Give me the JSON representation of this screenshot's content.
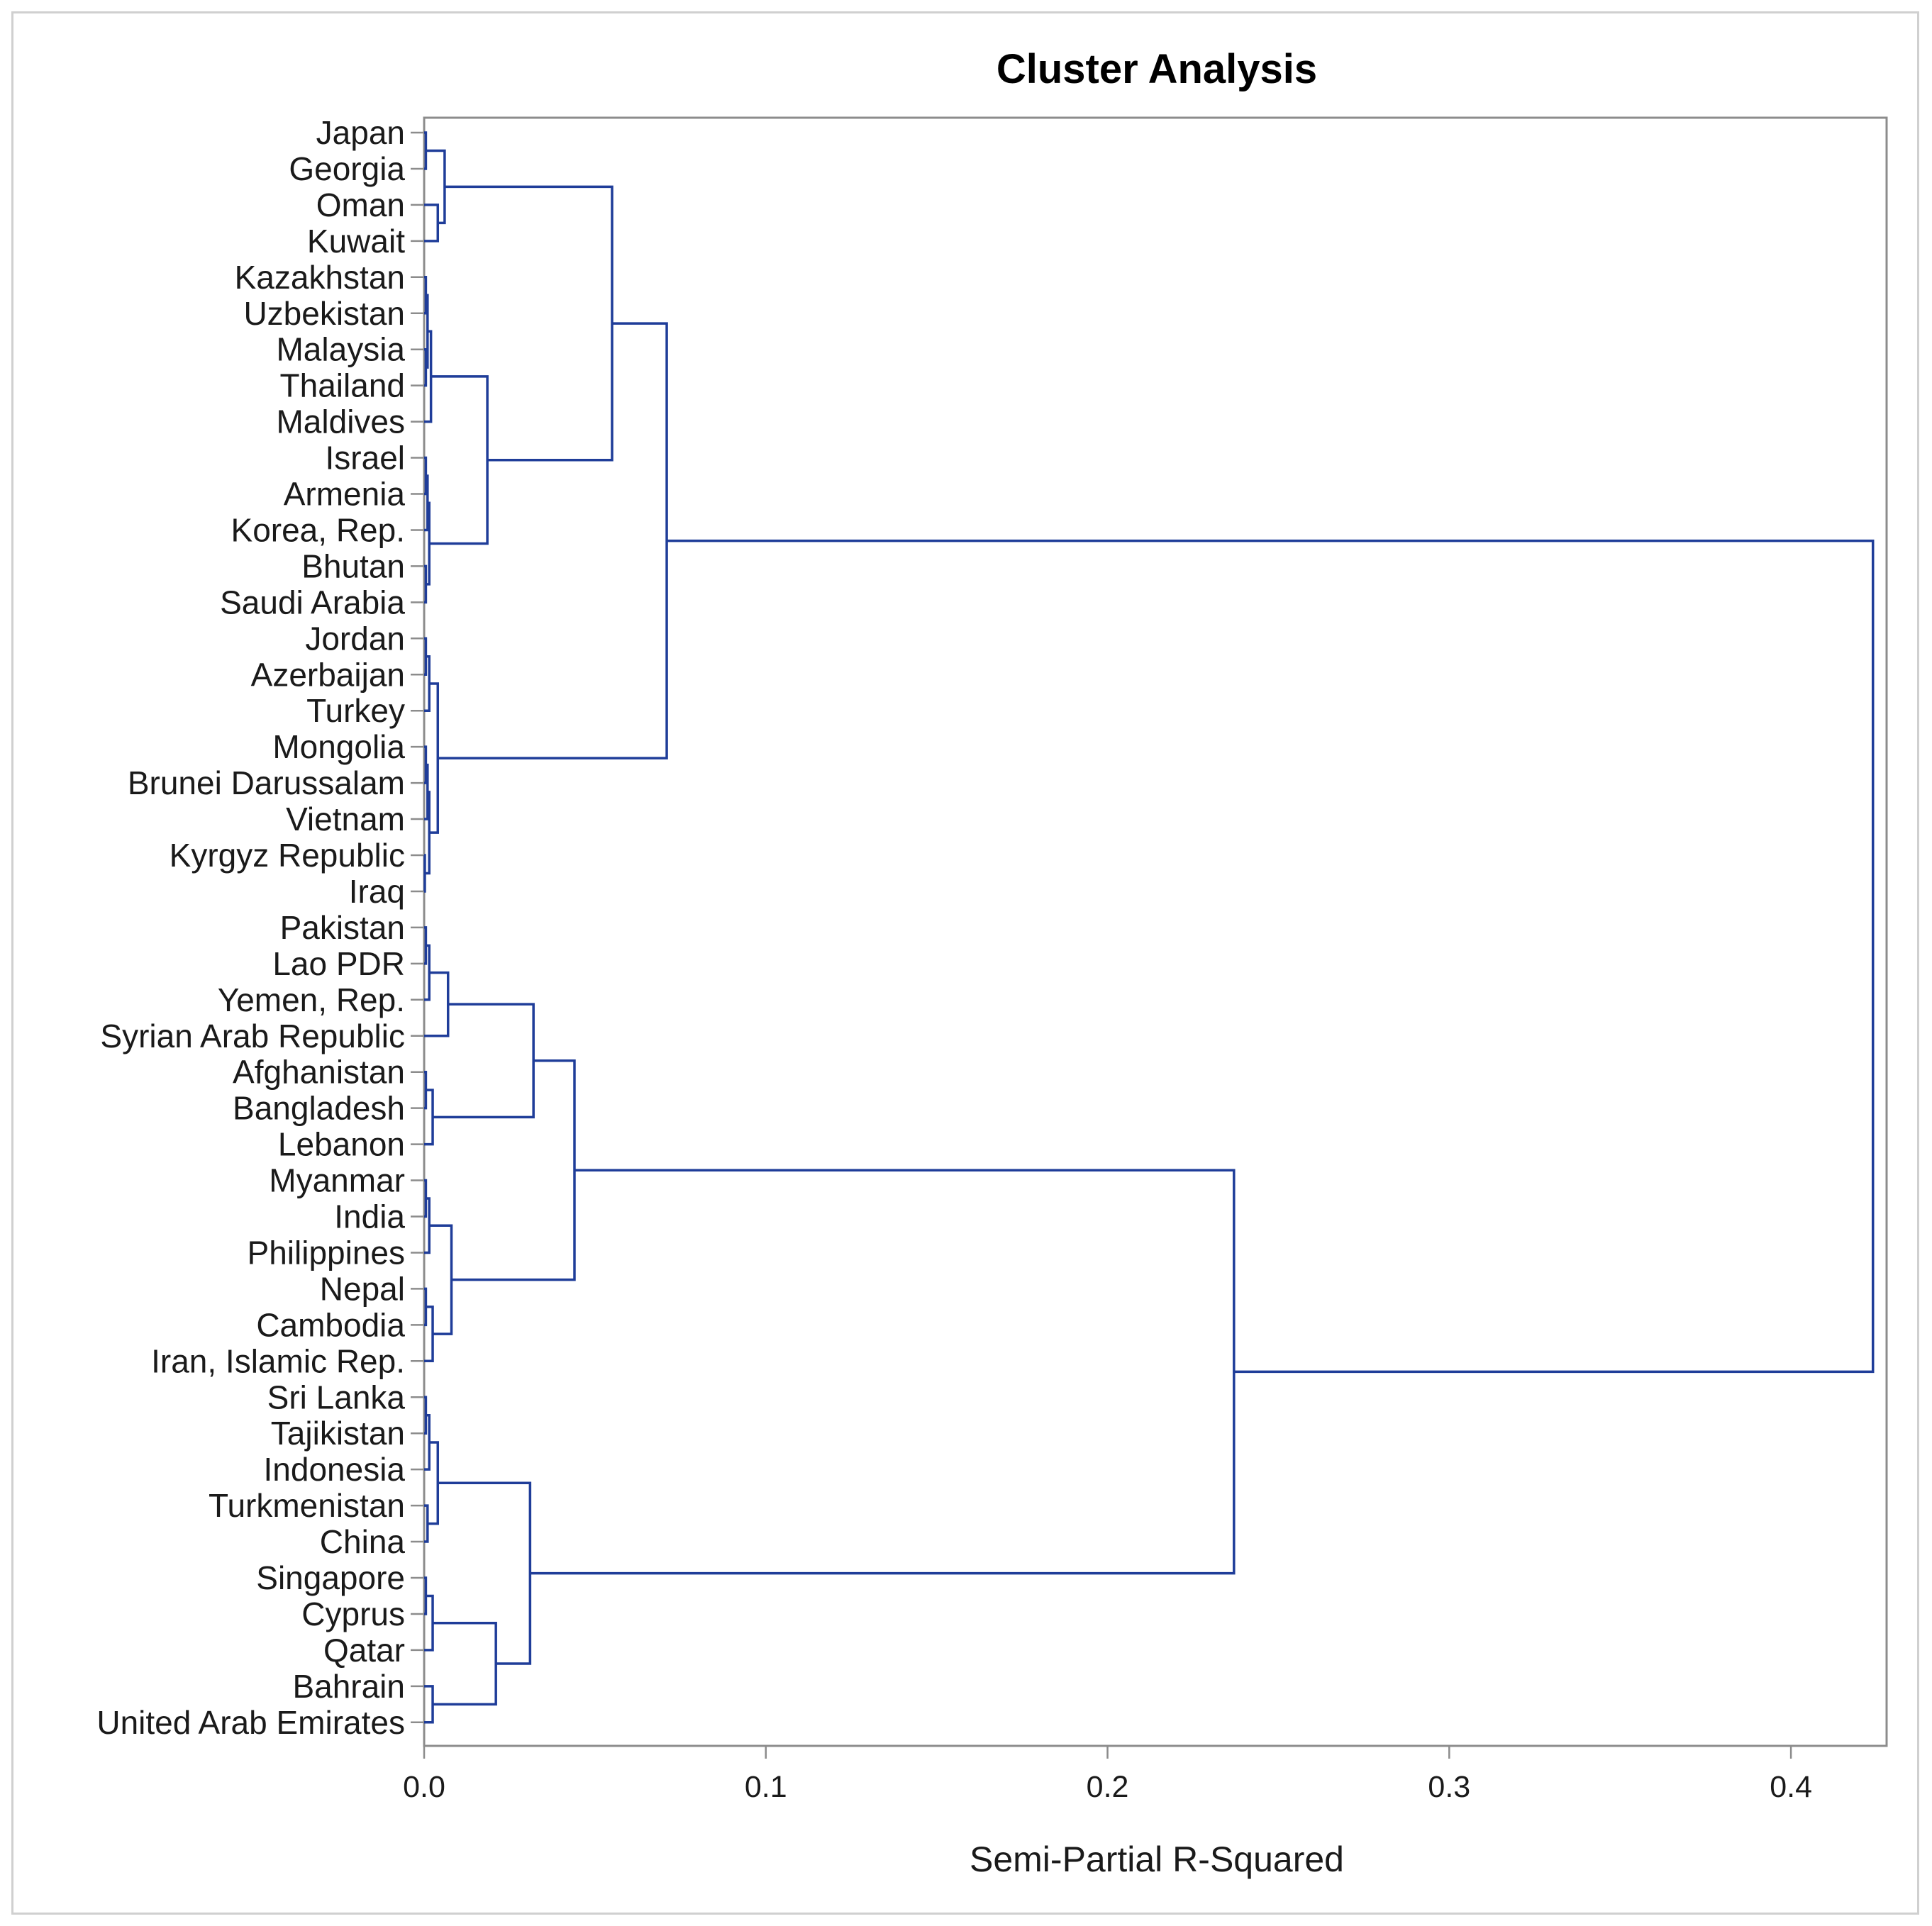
{
  "chart_data": {
    "type": "dendrogram",
    "title": "Cluster Analysis",
    "xlabel": "Semi-Partial R-Squared",
    "ylabel": "",
    "xlim": [
      0,
      0.428
    ],
    "xticks": [
      0.0,
      0.1,
      0.2,
      0.3,
      0.4
    ],
    "xtick_labels": [
      "0.0",
      "0.1",
      "0.2",
      "0.3",
      "0.4"
    ],
    "line_color": "#1f3d99",
    "axis_color": "#8c8c8c",
    "leaves": [
      "Japan",
      "Georgia",
      "Oman",
      "Kuwait",
      "Kazakhstan",
      "Uzbekistan",
      "Malaysia",
      "Thailand",
      "Maldives",
      "Israel",
      "Armenia",
      "Korea, Rep.",
      "Bhutan",
      "Saudi Arabia",
      "Jordan",
      "Azerbaijan",
      "Turkey",
      "Mongolia",
      "Brunei Darussalam",
      "Vietnam",
      "Kyrgyz Republic",
      "Iraq",
      "Pakistan",
      "Lao PDR",
      "Yemen, Rep.",
      "Syrian Arab Republic",
      "Afghanistan",
      "Bangladesh",
      "Lebanon",
      "Myanmar",
      "India",
      "Philippines",
      "Nepal",
      "Cambodia",
      "Iran, Islamic Rep.",
      "Sri Lanka",
      "Tajikistan",
      "Indonesia",
      "Turkmenistan",
      "China",
      "Singapore",
      "Cyprus",
      "Qatar",
      "Bahrain",
      "United Arab Emirates"
    ],
    "merges": [
      {
        "id": "c1",
        "children": [
          "L0",
          "L1"
        ],
        "height": 0.0005
      },
      {
        "id": "c2",
        "children": [
          "L2",
          "L3"
        ],
        "height": 0.004
      },
      {
        "id": "c3",
        "children": [
          "c1",
          "c2"
        ],
        "height": 0.006
      },
      {
        "id": "c4",
        "children": [
          "L4",
          "L5"
        ],
        "height": 0.0005
      },
      {
        "id": "c5",
        "children": [
          "L6",
          "L7"
        ],
        "height": 0.0005
      },
      {
        "id": "c6",
        "children": [
          "c4",
          "c5"
        ],
        "height": 0.001
      },
      {
        "id": "c7",
        "children": [
          "c6",
          "L8"
        ],
        "height": 0.002
      },
      {
        "id": "c8",
        "children": [
          "L9",
          "L10"
        ],
        "height": 0.0005
      },
      {
        "id": "c9",
        "children": [
          "c8",
          "L11"
        ],
        "height": 0.001
      },
      {
        "id": "c10",
        "children": [
          "L12",
          "L13"
        ],
        "height": 0.0005
      },
      {
        "id": "c11",
        "children": [
          "c9",
          "c10"
        ],
        "height": 0.0015
      },
      {
        "id": "c12",
        "children": [
          "c7",
          "c11"
        ],
        "height": 0.0185
      },
      {
        "id": "c13",
        "children": [
          "c3",
          "c12"
        ],
        "height": 0.055
      },
      {
        "id": "c14",
        "children": [
          "L14",
          "L15"
        ],
        "height": 0.0005
      },
      {
        "id": "c15",
        "children": [
          "c14",
          "L16"
        ],
        "height": 0.0015
      },
      {
        "id": "c16",
        "children": [
          "L17",
          "L18"
        ],
        "height": 0.0005
      },
      {
        "id": "c17",
        "children": [
          "c16",
          "L19"
        ],
        "height": 0.001
      },
      {
        "id": "c18",
        "children": [
          "L20",
          "L21"
        ],
        "height": 0.0002
      },
      {
        "id": "c19",
        "children": [
          "c17",
          "c18"
        ],
        "height": 0.0015
      },
      {
        "id": "c20",
        "children": [
          "c15",
          "c19"
        ],
        "height": 0.004
      },
      {
        "id": "c21",
        "children": [
          "c13",
          "c20"
        ],
        "height": 0.071
      },
      {
        "id": "c22",
        "children": [
          "L22",
          "L23"
        ],
        "height": 0.0005
      },
      {
        "id": "c23",
        "children": [
          "c22",
          "L24"
        ],
        "height": 0.0015
      },
      {
        "id": "c24",
        "children": [
          "c23",
          "L25"
        ],
        "height": 0.007
      },
      {
        "id": "c25",
        "children": [
          "L26",
          "L27"
        ],
        "height": 0.0005
      },
      {
        "id": "c26",
        "children": [
          "c25",
          "L28"
        ],
        "height": 0.0025
      },
      {
        "id": "c27",
        "children": [
          "c24",
          "c26"
        ],
        "height": 0.032
      },
      {
        "id": "c28",
        "children": [
          "L29",
          "L30"
        ],
        "height": 0.0005
      },
      {
        "id": "c29",
        "children": [
          "c28",
          "L31"
        ],
        "height": 0.0015
      },
      {
        "id": "c30",
        "children": [
          "L32",
          "L33"
        ],
        "height": 0.0005
      },
      {
        "id": "c31",
        "children": [
          "c30",
          "L34"
        ],
        "height": 0.0025
      },
      {
        "id": "c32",
        "children": [
          "c29",
          "c31"
        ],
        "height": 0.008
      },
      {
        "id": "c33",
        "children": [
          "c27",
          "c32"
        ],
        "height": 0.044
      },
      {
        "id": "c34",
        "children": [
          "L35",
          "L36"
        ],
        "height": 0.0005
      },
      {
        "id": "c35",
        "children": [
          "c34",
          "L37"
        ],
        "height": 0.0015
      },
      {
        "id": "c36",
        "children": [
          "L38",
          "L39"
        ],
        "height": 0.001
      },
      {
        "id": "c37",
        "children": [
          "c35",
          "c36"
        ],
        "height": 0.004
      },
      {
        "id": "c38",
        "children": [
          "L40",
          "L41"
        ],
        "height": 0.0005
      },
      {
        "id": "c39",
        "children": [
          "c38",
          "L42"
        ],
        "height": 0.0025
      },
      {
        "id": "c40",
        "children": [
          "L43",
          "L44"
        ],
        "height": 0.0025
      },
      {
        "id": "c41",
        "children": [
          "c39",
          "c40"
        ],
        "height": 0.021
      },
      {
        "id": "c42",
        "children": [
          "c37",
          "c41"
        ],
        "height": 0.031
      },
      {
        "id": "c43",
        "children": [
          "c33",
          "c42"
        ],
        "height": 0.237
      },
      {
        "id": "c44",
        "children": [
          "c21",
          "c43"
        ],
        "height": 0.424
      }
    ]
  }
}
